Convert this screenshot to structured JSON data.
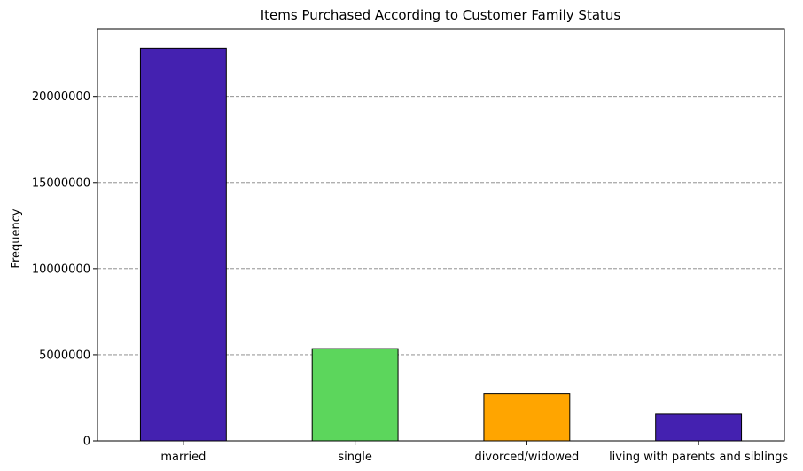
{
  "chart_data": {
    "type": "bar",
    "title": "Items Purchased According to Customer Family Status",
    "xlabel": "",
    "ylabel": "Frequency",
    "categories": [
      "married",
      "single",
      "divorced/widowed",
      "living with parents and siblings"
    ],
    "values": [
      22800000,
      5350000,
      2750000,
      1550000
    ],
    "bar_colors": [
      "#4421b0",
      "#5cd65c",
      "#ffa500",
      "#4421b0"
    ],
    "ylim": [
      0,
      23900000
    ],
    "yticks": [
      0,
      5000000,
      10000000,
      15000000,
      20000000
    ],
    "ytick_labels": [
      "0",
      "5000000",
      "10000000",
      "15000000",
      "20000000"
    ],
    "grid": "y-dashed",
    "legend": "none"
  }
}
